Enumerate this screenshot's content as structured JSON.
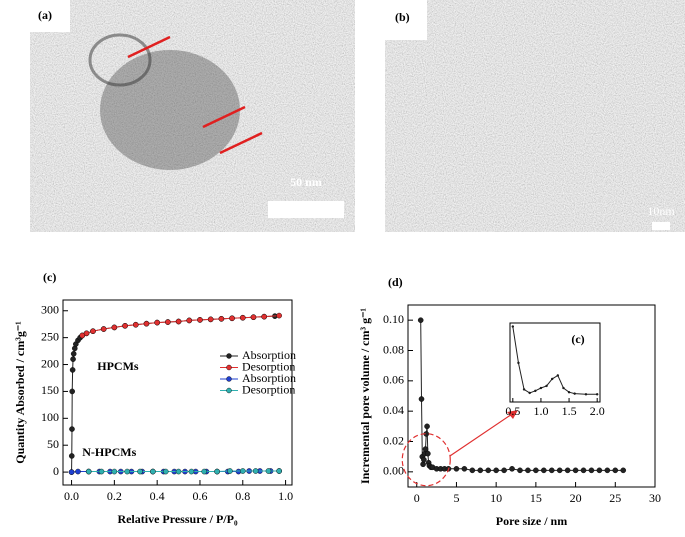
{
  "images": [
    {
      "label": "(a)",
      "scale_bar": "50 nm"
    },
    {
      "label": "(b)",
      "scale_bar": "10nm"
    }
  ],
  "chart_data": [
    {
      "type": "line",
      "title": "(c)",
      "xlabel": "Relative Pressure / P/P₀",
      "ylabel": "Quantity Absorbed / cm³g⁻¹",
      "xlim": [
        -0.04,
        1.03
      ],
      "xticks": [
        {
          "value": 0,
          "label": "0.0"
        },
        {
          "value": 0.2,
          "label": "0.2"
        },
        {
          "value": 0.4,
          "label": "0.4"
        },
        {
          "value": 0.6,
          "label": "0.6"
        },
        {
          "value": 0.8,
          "label": "0.8"
        },
        {
          "value": 1,
          "label": "1.0"
        }
      ],
      "ylim": [
        -24,
        320
      ],
      "yticks": [
        0,
        50,
        100,
        150,
        200,
        250,
        300
      ],
      "annotations": [
        "HPCMs",
        "N-HPCMs"
      ],
      "series": [
        {
          "name": "Absorption",
          "color": "#222222",
          "x": [
            0,
            0.001,
            0.002,
            0.003,
            0.005,
            0.007,
            0.01,
            0.015,
            0.02,
            0.03,
            0.04,
            0.05,
            0.07,
            0.1,
            0.15,
            0.2,
            0.25,
            0.3,
            0.35,
            0.4,
            0.45,
            0.5,
            0.55,
            0.6,
            0.65,
            0.7,
            0.75,
            0.8,
            0.85,
            0.9,
            0.95
          ],
          "values": [
            0,
            30,
            80,
            150,
            190,
            210,
            220,
            230,
            238,
            245,
            250,
            254,
            258,
            262,
            266,
            269,
            272,
            274,
            276,
            278,
            279,
            280,
            282,
            283,
            284,
            285,
            286,
            287,
            288,
            289,
            290
          ]
        },
        {
          "name": "Desorption",
          "color": "#e03030",
          "x": [
            0.97,
            0.9,
            0.85,
            0.8,
            0.75,
            0.7,
            0.65,
            0.6,
            0.55,
            0.5,
            0.45,
            0.4,
            0.35,
            0.3,
            0.25,
            0.2,
            0.15,
            0.1,
            0.07,
            0.05
          ],
          "values": [
            291,
            289,
            288,
            287,
            286,
            285,
            284,
            283,
            282,
            280,
            279,
            278,
            276,
            274,
            272,
            269,
            266,
            262,
            258,
            254
          ]
        },
        {
          "name": "Absorption",
          "color": "#2040d0",
          "x": [
            0,
            0.03,
            0.08,
            0.13,
            0.18,
            0.23,
            0.28,
            0.33,
            0.38,
            0.43,
            0.48,
            0.53,
            0.58,
            0.63,
            0.68,
            0.73,
            0.78,
            0.83,
            0.88,
            0.93,
            0.97
          ],
          "values": [
            0,
            1,
            1,
            1,
            1,
            1,
            1,
            1,
            1,
            1,
            1,
            1,
            1,
            1,
            1,
            1,
            1,
            2,
            2,
            2,
            2
          ]
        },
        {
          "name": "Desorption",
          "color": "#30b0b0",
          "x": [
            0.97,
            0.92,
            0.86,
            0.8,
            0.74,
            0.68,
            0.62,
            0.56,
            0.5,
            0.44,
            0.38,
            0.32,
            0.26,
            0.2,
            0.14,
            0.08
          ],
          "values": [
            2,
            2,
            2,
            2,
            2,
            1,
            1,
            1,
            1,
            1,
            1,
            1,
            1,
            1,
            1,
            1
          ]
        }
      ]
    },
    {
      "type": "line",
      "title": "(d)",
      "xlabel": "Pore size / nm",
      "ylabel": "Incremental pore volume / cm³ g⁻¹",
      "xlim": [
        -1.1,
        30
      ],
      "xticks": [
        0,
        5,
        10,
        15,
        20,
        25,
        30
      ],
      "ylim": [
        -0.01,
        0.11
      ],
      "yticks": [
        {
          "value": 0,
          "label": "0.00"
        },
        {
          "value": 0.02,
          "label": "0.02"
        },
        {
          "value": 0.04,
          "label": "0.04"
        },
        {
          "value": 0.06,
          "label": "0.06"
        },
        {
          "value": 0.08,
          "label": "0.08"
        },
        {
          "value": 0.1,
          "label": "0.10"
        }
      ],
      "series": [
        {
          "color": "#222222",
          "x": [
            0.5,
            0.6,
            0.7,
            0.8,
            0.9,
            1.0,
            1.1,
            1.2,
            1.3,
            1.4,
            1.5,
            1.6,
            1.8,
            2,
            2.5,
            3,
            3.5,
            4,
            5,
            6,
            7,
            8,
            9,
            10,
            11,
            12,
            13,
            14,
            15,
            16,
            17,
            18,
            19,
            20,
            21,
            22,
            23,
            24,
            25,
            26
          ],
          "values": [
            0.1,
            0.048,
            0.01,
            0.005,
            0.008,
            0.012,
            0.015,
            0.025,
            0.03,
            0.012,
            0.006,
            0.004,
            0.003,
            0.003,
            0.002,
            0.002,
            0.002,
            0.002,
            0.002,
            0.002,
            0.001,
            0.001,
            0.001,
            0.001,
            0.001,
            0.002,
            0.001,
            0.001,
            0.001,
            0.001,
            0.001,
            0.001,
            0.001,
            0.001,
            0.001,
            0.001,
            0.001,
            0.001,
            0.001,
            0.001
          ]
        }
      ],
      "inset": {
        "label": "(c)",
        "xlim": [
          0.45,
          2.05
        ],
        "xticks": [
          {
            "value": 0.5,
            "label": "0.5"
          },
          {
            "value": 1,
            "label": "1.0"
          },
          {
            "value": 1.5,
            "label": "1.5"
          },
          {
            "value": 2,
            "label": "2.0"
          }
        ],
        "ylim": [
          -0.008,
          0.105
        ]
      }
    }
  ]
}
